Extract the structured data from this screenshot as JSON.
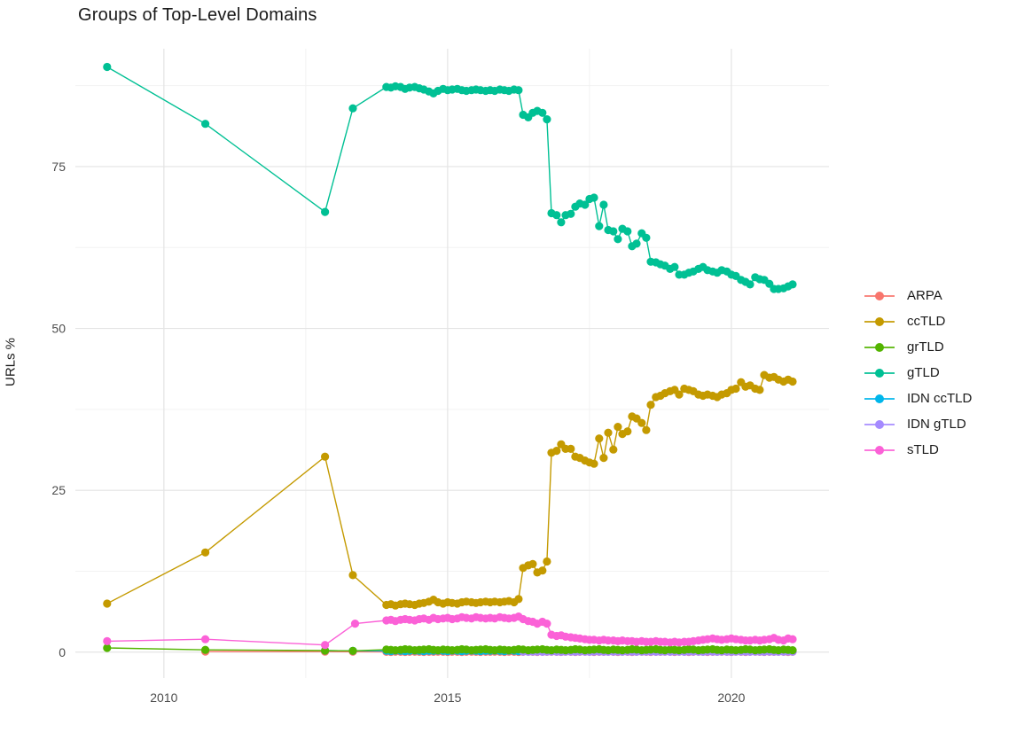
{
  "chart_data": {
    "type": "line",
    "title": "Groups of Top-Level Domains",
    "xlabel": "",
    "ylabel": "URLs %",
    "grid": true,
    "legend_position": "right",
    "colors": {
      "title_text": "#1a1a1a",
      "tick_text": "#4d4d4d",
      "grid_major": "#e4e4e4",
      "grid_minor": "#f2f2f2",
      "background": "#ffffff"
    },
    "axes": {
      "x": {
        "range": [
          2008.44,
          2021.72
        ],
        "ticks": [
          {
            "v": 2010,
            "label": "2010"
          },
          {
            "v": 2015,
            "label": "2015"
          },
          {
            "v": 2020,
            "label": "2020"
          }
        ],
        "minor": [
          2012.5,
          2017.5
        ]
      },
      "y": {
        "range": [
          -4,
          93.2
        ],
        "ticks": [
          {
            "v": 0,
            "label": "0"
          },
          {
            "v": 25,
            "label": "25"
          },
          {
            "v": 50,
            "label": "50"
          },
          {
            "v": 75,
            "label": "75"
          }
        ],
        "minor": [
          12.5,
          37.5,
          62.5,
          87.5
        ]
      }
    },
    "x_monthly": [
      2013.92,
      2014,
      2014.08,
      2014.17,
      2014.25,
      2014.33,
      2014.42,
      2014.5,
      2014.58,
      2014.67,
      2014.75,
      2014.83,
      2014.92,
      2015,
      2015.08,
      2015.17,
      2015.25,
      2015.33,
      2015.42,
      2015.5,
      2015.58,
      2015.67,
      2015.75,
      2015.83,
      2015.92,
      2016,
      2016.08,
      2016.17,
      2016.25,
      2016.33,
      2016.42,
      2016.5,
      2016.58,
      2016.67,
      2016.75,
      2016.83,
      2016.92,
      2017,
      2017.08,
      2017.17,
      2017.25,
      2017.33,
      2017.42,
      2017.5,
      2017.58,
      2017.67,
      2017.75,
      2017.83,
      2017.92,
      2018,
      2018.08,
      2018.17,
      2018.25,
      2018.33,
      2018.42,
      2018.5,
      2018.58,
      2018.67,
      2018.75,
      2018.83,
      2018.92,
      2019,
      2019.08,
      2019.17,
      2019.25,
      2019.33,
      2019.42,
      2019.5,
      2019.58,
      2019.67,
      2019.75,
      2019.83,
      2019.92,
      2020,
      2020.08,
      2020.17,
      2020.25,
      2020.33,
      2020.42,
      2020.5,
      2020.58,
      2020.67,
      2020.75,
      2020.83,
      2020.92,
      2021,
      2021.08
    ],
    "series": [
      {
        "name": "ARPA",
        "color": "#F8766D",
        "x_pre": [
          2010.73,
          2012.84,
          2013.33
        ],
        "y_pre": [
          0.1,
          0.08,
          0.06
        ],
        "y_monthly": [
          0.05,
          0.04,
          0.06,
          0.05,
          0.04,
          0.05,
          0.06,
          0.05,
          0.04,
          0.05,
          0.05,
          0.06,
          0.05,
          0.04,
          0.06,
          0.05,
          0.04,
          0.05,
          0.06,
          0.05,
          0.04,
          0.05,
          0.05,
          0.06,
          0.05,
          0.04,
          0.06,
          0.05,
          0.04,
          0.05,
          0.06,
          0.05,
          0.04,
          0.05,
          0.05,
          0.06,
          0.05,
          0.04,
          0.06,
          0.05,
          0.04,
          0.05,
          0.06,
          0.05,
          0.04,
          0.05,
          0.05,
          0.06,
          0.05,
          0.04,
          0.06,
          0.05,
          0.04,
          0.05,
          0.06,
          0.05,
          0.04,
          0.05,
          0.05,
          0.06,
          0.05,
          0.04,
          0.06,
          0.05,
          0.04,
          0.05,
          0.06,
          0.05,
          0.04,
          0.05,
          0.05,
          0.06,
          0.05,
          0.04,
          0.06,
          0.05,
          0.04,
          0.05,
          0.06,
          0.05,
          0.04,
          0.05,
          0.05,
          0.06,
          0.05,
          0.04,
          0.05
        ]
      },
      {
        "name": "ccTLD",
        "color": "#C49A00",
        "x_pre": [
          2009,
          2010.73,
          2012.84,
          2013.33
        ],
        "y_pre": [
          7.5,
          15.4,
          30.2,
          11.9
        ],
        "y_monthly": [
          7.3,
          7.4,
          7.2,
          7.4,
          7.5,
          7.4,
          7.3,
          7.5,
          7.6,
          7.8,
          8.1,
          7.7,
          7.5,
          7.7,
          7.6,
          7.5,
          7.7,
          7.8,
          7.7,
          7.6,
          7.7,
          7.8,
          7.7,
          7.8,
          7.7,
          7.8,
          7.9,
          7.7,
          8.2,
          13,
          13.4,
          13.6,
          12.3,
          12.6,
          14,
          30.8,
          31.1,
          32.1,
          31.4,
          31.4,
          30.2,
          30,
          29.6,
          29.3,
          29.1,
          33,
          30,
          33.9,
          31.3,
          34.8,
          33.7,
          34.1,
          36.4,
          36.1,
          35.4,
          34.3,
          38.2,
          39.4,
          39.6,
          40,
          40.3,
          40.5,
          39.8,
          40.7,
          40.5,
          40.3,
          39.8,
          39.6,
          39.8,
          39.6,
          39.4,
          39.8,
          40,
          40.5,
          40.7,
          41.7,
          41,
          41.2,
          40.7,
          40.5,
          42.8,
          42.4,
          42.5,
          42.1,
          41.8,
          42.1,
          41.8
        ]
      },
      {
        "name": "grTLD",
        "color": "#53B400",
        "x_pre": [
          2009,
          2010.73,
          2012.84,
          2013.33
        ],
        "y_pre": [
          0.65,
          0.35,
          0.25,
          0.2
        ],
        "y_monthly": [
          0.4,
          0.35,
          0.3,
          0.35,
          0.45,
          0.4,
          0.3,
          0.35,
          0.4,
          0.45,
          0.35,
          0.3,
          0.4,
          0.35,
          0.3,
          0.35,
          0.45,
          0.4,
          0.3,
          0.35,
          0.4,
          0.45,
          0.35,
          0.3,
          0.4,
          0.35,
          0.3,
          0.35,
          0.45,
          0.4,
          0.3,
          0.35,
          0.4,
          0.45,
          0.35,
          0.3,
          0.4,
          0.35,
          0.3,
          0.35,
          0.45,
          0.4,
          0.3,
          0.35,
          0.4,
          0.45,
          0.35,
          0.3,
          0.4,
          0.35,
          0.3,
          0.35,
          0.45,
          0.4,
          0.3,
          0.35,
          0.4,
          0.45,
          0.35,
          0.3,
          0.4,
          0.35,
          0.3,
          0.35,
          0.45,
          0.4,
          0.3,
          0.35,
          0.4,
          0.45,
          0.35,
          0.3,
          0.4,
          0.35,
          0.3,
          0.35,
          0.45,
          0.4,
          0.3,
          0.35,
          0.4,
          0.45,
          0.35,
          0.3,
          0.4,
          0.35,
          0.3
        ]
      },
      {
        "name": "gTLD",
        "color": "#00C094",
        "x_pre": [
          2009,
          2010.73,
          2012.84,
          2013.33
        ],
        "y_pre": [
          90.4,
          81.6,
          68,
          84
        ],
        "y_monthly": [
          87.3,
          87.2,
          87.4,
          87.3,
          87,
          87.2,
          87.3,
          87.1,
          86.9,
          86.6,
          86.3,
          86.7,
          87,
          86.8,
          86.9,
          87,
          86.8,
          86.7,
          86.8,
          86.9,
          86.8,
          86.7,
          86.8,
          86.7,
          86.9,
          86.8,
          86.7,
          86.9,
          86.8,
          83,
          82.6,
          83.3,
          83.6,
          83.3,
          82.3,
          67.8,
          67.5,
          66.4,
          67.5,
          67.7,
          68.8,
          69.3,
          69.1,
          70,
          70.2,
          65.8,
          69.1,
          65.2,
          65,
          63.8,
          65.4,
          65,
          62.7,
          63.1,
          64.7,
          64,
          60.3,
          60.2,
          59.9,
          59.7,
          59.2,
          59.5,
          58.3,
          58.3,
          58.6,
          58.8,
          59.2,
          59.5,
          59,
          58.8,
          58.6,
          59,
          58.8,
          58.3,
          58.1,
          57.5,
          57.2,
          56.8,
          57.9,
          57.6,
          57.5,
          56.9,
          56.1,
          56.1,
          56.2,
          56.5,
          56.8
        ]
      },
      {
        "name": "IDN ccTLD",
        "color": "#00B6EB",
        "x_pre": [
          2012.84,
          2013.33
        ],
        "y_pre": [
          0.25,
          0.2
        ],
        "y_monthly": [
          0.2,
          0.15,
          0.25,
          0.2,
          0.15,
          0.2,
          0.25,
          0.2,
          0.15,
          0.2,
          0.2,
          0.25,
          0.2,
          0.15,
          0.25,
          0.2,
          0.15,
          0.2,
          0.25,
          0.2,
          0.15,
          0.2,
          0.2,
          0.25,
          0.2,
          0.15,
          0.25,
          0.2,
          0.15,
          0.2,
          0.25,
          0.2,
          0.15,
          0.2,
          0.2,
          0.25,
          0.2,
          0.15,
          0.25,
          0.2,
          0.15,
          0.2,
          0.25,
          0.2,
          0.15,
          0.2,
          0.2,
          0.25,
          0.2,
          0.15,
          0.25,
          0.2,
          0.15,
          0.2,
          0.25,
          0.2,
          0.15,
          0.2,
          0.2,
          0.25,
          0.2,
          0.15,
          0.25,
          0.2,
          0.15,
          0.2,
          0.25,
          0.2,
          0.15,
          0.2,
          0.2,
          0.25,
          0.2,
          0.15,
          0.25,
          0.2,
          0.15,
          0.2,
          0.25,
          0.2,
          0.15,
          0.2,
          0.2,
          0.25,
          0.2,
          0.15,
          0.2
        ]
      },
      {
        "name": "IDN gTLD",
        "color": "#A58AFF",
        "x_pre": [],
        "y_pre": [],
        "monthly_start": 2016.33,
        "y_monthly": [
          0.08,
          0.05,
          0.1,
          0.07,
          0.05,
          0.08,
          0.1,
          0.07,
          0.05,
          0.08,
          0.08,
          0.05,
          0.1,
          0.07,
          0.05,
          0.08,
          0.1,
          0.07,
          0.05,
          0.08,
          0.08,
          0.05,
          0.1,
          0.07,
          0.05,
          0.08,
          0.1,
          0.07,
          0.05,
          0.08,
          0.08,
          0.05,
          0.1,
          0.07,
          0.05,
          0.08,
          0.1,
          0.07,
          0.05,
          0.08,
          0.08,
          0.05,
          0.1,
          0.07,
          0.05,
          0.08,
          0.1,
          0.07,
          0.05,
          0.08,
          0.08,
          0.05,
          0.1,
          0.07,
          0.05,
          0.08,
          0.1,
          0.07
        ]
      },
      {
        "name": "sTLD",
        "color": "#FB61D7",
        "x_pre": [
          2009,
          2010.73,
          2012.84,
          2013.37
        ],
        "y_pre": [
          1.7,
          2,
          1.1,
          4.4
        ],
        "y_monthly": [
          4.9,
          5,
          4.8,
          5,
          5.1,
          5,
          4.9,
          5.1,
          5.2,
          5,
          5.3,
          5.1,
          5.2,
          5.3,
          5.1,
          5.2,
          5.4,
          5.3,
          5.2,
          5.4,
          5.3,
          5.2,
          5.3,
          5.2,
          5.4,
          5.3,
          5.2,
          5.3,
          5.5,
          5.1,
          4.8,
          4.7,
          4.4,
          4.7,
          4.4,
          2.7,
          2.5,
          2.6,
          2.4,
          2.3,
          2.2,
          2.1,
          2,
          1.9,
          1.9,
          1.8,
          1.9,
          1.8,
          1.8,
          1.7,
          1.8,
          1.7,
          1.7,
          1.6,
          1.7,
          1.6,
          1.6,
          1.7,
          1.6,
          1.6,
          1.5,
          1.6,
          1.5,
          1.6,
          1.6,
          1.7,
          1.8,
          1.9,
          2,
          2.1,
          2,
          1.9,
          2,
          2.1,
          2,
          1.9,
          1.8,
          1.8,
          1.9,
          1.8,
          1.9,
          2,
          2.2,
          1.9,
          1.8,
          2.1,
          2
        ]
      }
    ]
  }
}
